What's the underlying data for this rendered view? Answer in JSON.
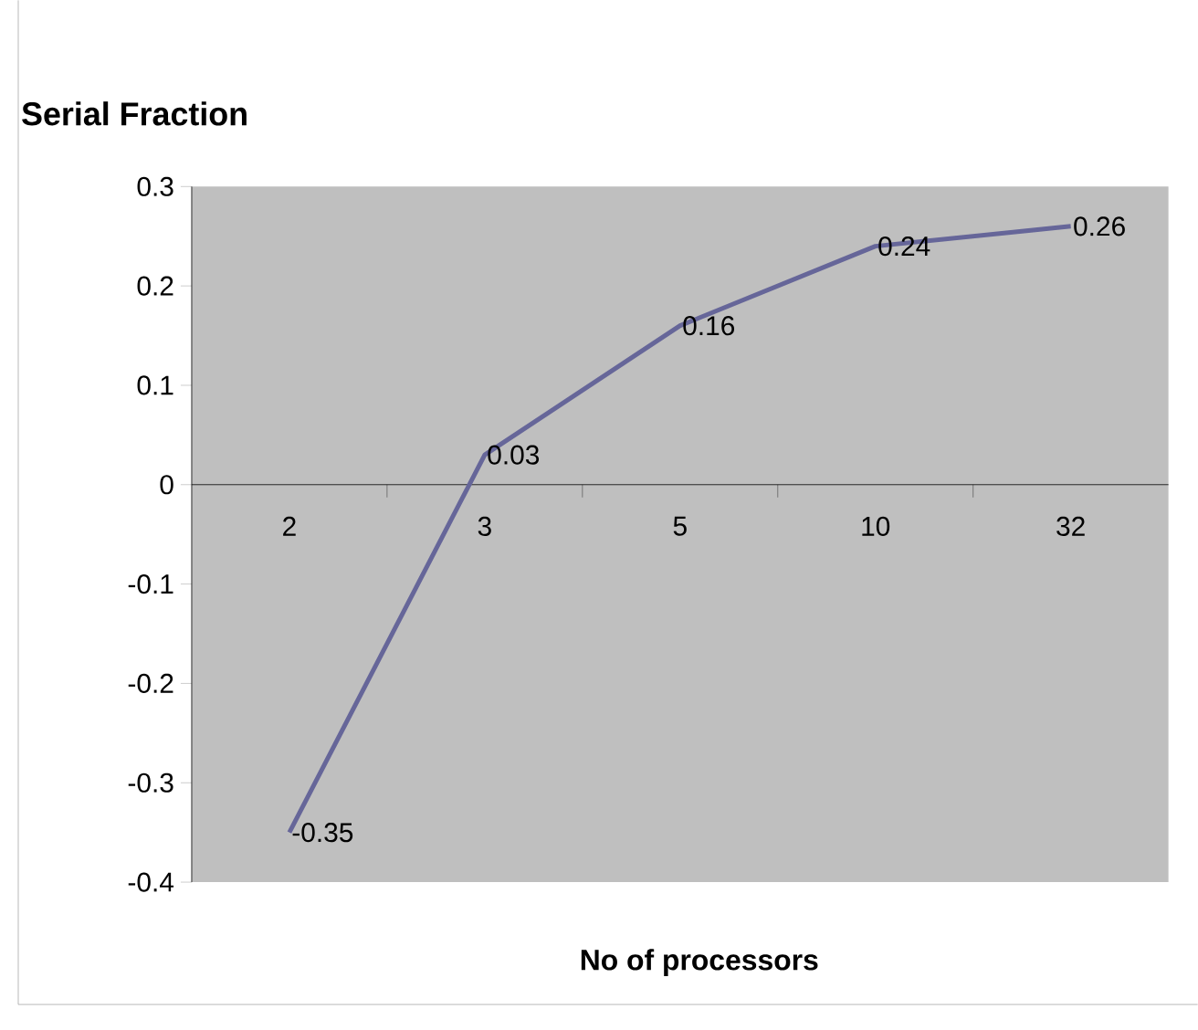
{
  "chart_data": {
    "type": "line",
    "title": "Serial Fraction",
    "xlabel": "No of processors",
    "categories": [
      "2",
      "3",
      "5",
      "10",
      "32"
    ],
    "values": [
      -0.35,
      0.03,
      0.16,
      0.24,
      0.26
    ],
    "color": "#666699",
    "ylim": [
      -0.4,
      0.3
    ],
    "yticks": [
      -0.4,
      -0.3,
      -0.2,
      -0.1,
      0,
      0.1,
      0.2,
      0.3
    ],
    "data_labels": true
  }
}
